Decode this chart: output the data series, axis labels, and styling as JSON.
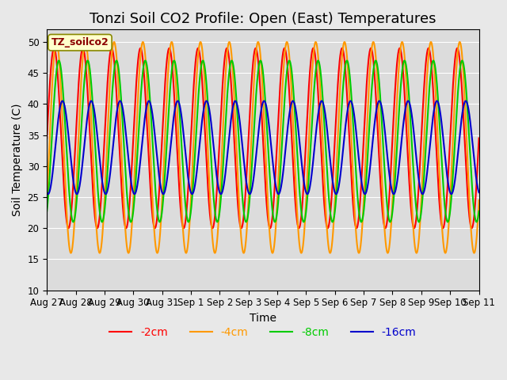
{
  "title": "Tonzi Soil CO2 Profile: Open (East) Temperatures",
  "xlabel": "Time",
  "ylabel": "Soil Temperature (C)",
  "ylim": [
    10,
    52
  ],
  "legend_label": "TZ_soilco2",
  "legend_items": [
    "-2cm",
    "-4cm",
    "-8cm",
    "-16cm"
  ],
  "line_colors": [
    "#ff0000",
    "#ff9900",
    "#00cc00",
    "#0000cc"
  ],
  "xtick_labels": [
    "Aug 27",
    "Aug 28",
    "Aug 29",
    "Aug 30",
    "Aug 31",
    "Sep 1",
    "Sep 2",
    "Sep 3",
    "Sep 4",
    "Sep 5",
    "Sep 6",
    "Sep 7",
    "Sep 8",
    "Sep 9",
    "Sep 10",
    "Sep 11"
  ],
  "background_color": "#e8e8e8",
  "plot_bg": "#dcdcdc",
  "grid_color": "#ffffff",
  "title_fontsize": 13,
  "axis_fontsize": 10,
  "tick_fontsize": 8.5,
  "legend_fontsize": 10
}
